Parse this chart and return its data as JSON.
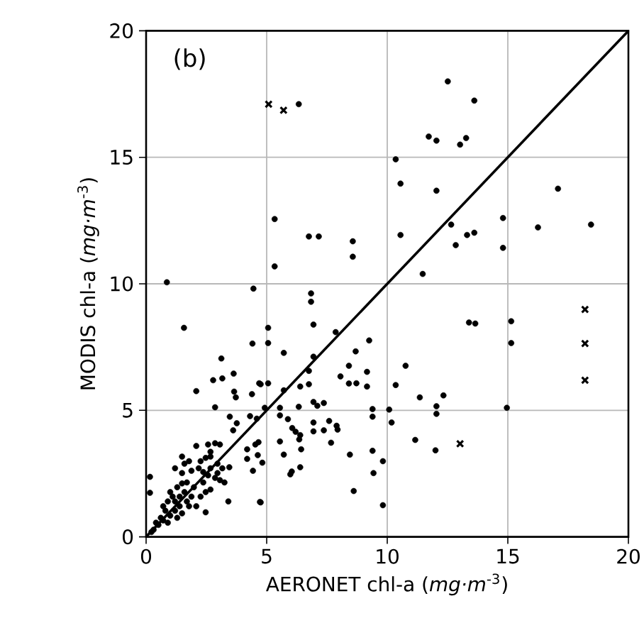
{
  "chart_data": {
    "type": "scatter",
    "xlabel": "AERONET chl-a (*mg·m*$^{-3}$)",
    "ylabel": "MODIS chl-a (*mg·m*$^{-3}$)",
    "annotations": [
      "(b)"
    ],
    "xlim": [
      0,
      20
    ],
    "ylim": [
      0,
      20
    ],
    "xticks": [
      0,
      5,
      10,
      15,
      20
    ],
    "yticks": [
      0,
      5,
      10,
      15,
      20
    ],
    "grid": true,
    "series": [
      {
        "color": "#000000",
        "marker": "circle",
        "x": [
          6.33,
          5.33,
          6.75,
          7.16,
          8.57,
          8.57,
          5.33,
          12.51,
          13.61,
          11.72,
          12.04,
          13.27,
          13.02,
          10.35,
          10.55,
          12.04,
          17.08,
          12.65,
          14.8,
          16.25,
          18.45,
          10.55,
          13.31,
          13.61,
          12.84,
          14.8,
          11.47,
          13.39,
          13.65,
          15.14,
          15.14,
          10.76,
          10.35,
          11.35,
          12.33,
          12.04,
          12.04,
          10.08,
          14.96,
          10.18,
          11.16,
          12.0,
          9.82,
          9.82,
          6.84,
          6.84,
          6.94,
          5.06,
          5.06,
          5.71,
          7.86,
          9.25,
          8.69,
          6.94,
          8.41,
          9.16,
          8.06,
          6.75,
          8.41,
          8.72,
          9.16,
          4.69,
          5.06,
          5.71,
          6.39,
          6.75,
          6.94,
          7.1,
          7.37,
          6.33,
          5.55,
          5.55,
          4.92,
          9.39,
          9.39,
          5.88,
          6.06,
          6.2,
          6.39,
          6.35,
          6.94,
          6.94,
          7.59,
          7.37,
          7.9,
          7.94,
          7.67,
          5.55,
          6.43,
          5.71,
          8.45,
          9.39,
          9.43,
          6.04,
          5.98,
          6.39,
          4.82,
          8.61,
          4.72,
          0.86,
          1.57,
          3.12,
          2.78,
          3.16,
          3.63,
          2.08,
          3.65,
          4.41,
          4.45,
          4.39,
          3.72,
          2.86,
          3.76,
          3.47,
          4.75,
          4.31,
          4.59,
          3.61,
          4.53,
          4.19,
          4.66,
          2.08,
          2.57,
          2.86,
          3.06,
          1.49,
          2.47,
          2.67,
          3.45,
          4.19,
          4.63,
          4.43,
          3.41,
          4.75,
          2.47,
          0.16,
          0.16,
          0.31,
          0.51,
          0.71,
          0.9,
          1.0,
          1.2,
          0.8,
          1.29,
          1.39,
          1.49,
          1.69,
          1.1,
          1.0,
          1.29,
          1.88,
          1.69,
          1.98,
          2.08,
          2.26,
          2.37,
          1.49,
          1.88,
          2.18,
          2.57,
          2.67,
          2.86,
          2.96,
          3.16,
          3.06,
          3.25,
          2.47,
          2.67,
          1.59,
          1.2,
          1.78,
          2.26,
          2.96,
          2.67,
          0.61,
          0.41,
          0.71,
          1.39,
          1.59,
          1.78,
          0.9,
          0.22,
          1.2,
          1.49,
          2.37
        ],
        "values": [
          17.1,
          12.56,
          11.87,
          11.87,
          11.68,
          11.07,
          10.69,
          18.0,
          17.24,
          15.82,
          15.66,
          15.76,
          15.5,
          14.92,
          13.96,
          13.68,
          13.76,
          12.34,
          12.6,
          12.23,
          12.34,
          11.93,
          11.93,
          12.02,
          11.53,
          11.42,
          10.39,
          8.47,
          8.43,
          8.52,
          7.66,
          6.76,
          6.0,
          5.51,
          5.59,
          5.16,
          4.86,
          5.03,
          5.1,
          4.52,
          3.83,
          3.42,
          2.99,
          1.25,
          9.62,
          9.29,
          8.39,
          8.26,
          7.66,
          7.27,
          8.09,
          7.76,
          7.33,
          7.12,
          6.76,
          6.52,
          6.34,
          6.56,
          6.06,
          6.07,
          5.94,
          6.07,
          6.07,
          5.79,
          5.94,
          6.03,
          5.33,
          5.18,
          5.29,
          5.14,
          5.1,
          4.8,
          5.1,
          5.05,
          4.75,
          4.65,
          4.3,
          4.15,
          4.02,
          3.85,
          4.52,
          4.17,
          4.58,
          4.21,
          4.39,
          4.24,
          3.72,
          3.77,
          3.46,
          3.25,
          3.25,
          3.4,
          2.52,
          2.58,
          2.47,
          2.75,
          2.93,
          1.81,
          1.38,
          10.06,
          8.26,
          7.05,
          6.19,
          6.26,
          6.45,
          5.76,
          5.74,
          7.64,
          9.81,
          5.64,
          5.51,
          5.12,
          4.49,
          4.75,
          6.03,
          4.77,
          4.67,
          4.21,
          3.65,
          3.46,
          3.74,
          3.59,
          3.65,
          3.7,
          3.65,
          3.17,
          3.12,
          3.17,
          2.75,
          3.08,
          3.23,
          2.61,
          1.4,
          1.36,
          0.97,
          2.37,
          1.74,
          0.28,
          0.47,
          0.65,
          0.56,
          0.84,
          1.03,
          1.03,
          0.75,
          1.21,
          0.93,
          1.4,
          1.59,
          1.77,
          1.96,
          1.59,
          2.15,
          1.96,
          1.21,
          1.59,
          2.15,
          2.52,
          2.61,
          2.71,
          2.43,
          2.71,
          2.33,
          2.52,
          2.71,
          2.24,
          2.15,
          1.77,
          1.87,
          2.89,
          2.71,
          2.99,
          2.99,
          2.89,
          3.36,
          0.75,
          0.56,
          1.21,
          1.59,
          1.77,
          1.21,
          1.4,
          0.19,
          1.4,
          2.11,
          2.56
        ]
      },
      {
        "color": "#000000",
        "marker": "cross",
        "x": [
          5.08,
          5.7,
          18.2,
          18.2,
          18.2,
          13.02
        ],
        "values": [
          17.1,
          16.86,
          8.99,
          7.64,
          6.19,
          3.68
        ]
      },
      {
        "type": "line",
        "color": "#000000",
        "marker": "none",
        "x": [
          0,
          20
        ],
        "values": [
          0,
          20
        ]
      }
    ]
  }
}
